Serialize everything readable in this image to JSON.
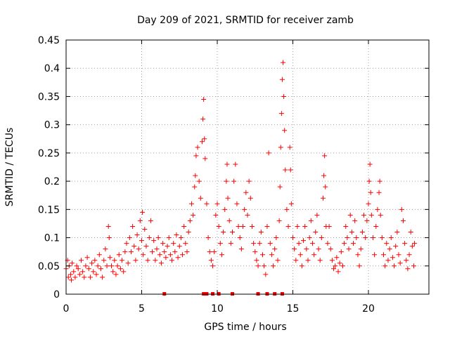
{
  "chart_data": {
    "type": "scatter",
    "title": "Day 209 of 2021, SRMTID for receiver zamb",
    "xlabel": "GPS time / hours",
    "ylabel": "SRMTID / TECUs",
    "xlim": [
      0,
      24
    ],
    "ylim": [
      0,
      0.45
    ],
    "xticks": [
      0,
      5,
      10,
      15,
      20
    ],
    "yticks": [
      0,
      0.05,
      0.1,
      0.15,
      0.2,
      0.25,
      0.3,
      0.35,
      0.4,
      0.45
    ],
    "xtick_labels": [
      "0",
      "5",
      "10",
      "15",
      "20"
    ],
    "ytick_labels": [
      "0",
      "0.05",
      "0.1",
      "0.15",
      "0.2",
      "0.25",
      "0.3",
      "0.35",
      "0.4",
      "0.45"
    ],
    "grid": true,
    "series_color": "#ff0000",
    "marker": "+",
    "series": [
      {
        "name": "SRMTID",
        "points": [
          [
            0.0,
            0.045
          ],
          [
            0.1,
            0.06
          ],
          [
            0.15,
            0.03
          ],
          [
            0.2,
            0.05
          ],
          [
            0.3,
            0.035
          ],
          [
            0.35,
            0.025
          ],
          [
            0.4,
            0.055
          ],
          [
            0.5,
            0.04
          ],
          [
            0.6,
            0.03
          ],
          [
            0.7,
            0.05
          ],
          [
            0.8,
            0.045
          ],
          [
            0.9,
            0.035
          ],
          [
            1.0,
            0.06
          ],
          [
            1.1,
            0.04
          ],
          [
            1.2,
            0.03
          ],
          [
            1.3,
            0.05
          ],
          [
            1.4,
            0.065
          ],
          [
            1.5,
            0.045
          ],
          [
            1.6,
            0.03
          ],
          [
            1.7,
            0.055
          ],
          [
            1.8,
            0.04
          ],
          [
            1.9,
            0.06
          ],
          [
            2.0,
            0.035
          ],
          [
            2.1,
            0.05
          ],
          [
            2.2,
            0.07
          ],
          [
            2.3,
            0.045
          ],
          [
            2.4,
            0.03
          ],
          [
            2.5,
            0.06
          ],
          [
            2.6,
            0.08
          ],
          [
            2.7,
            0.05
          ],
          [
            2.8,
            0.12
          ],
          [
            2.85,
            0.1
          ],
          [
            2.9,
            0.065
          ],
          [
            3.0,
            0.05
          ],
          [
            3.1,
            0.04
          ],
          [
            3.2,
            0.06
          ],
          [
            3.3,
            0.035
          ],
          [
            3.4,
            0.05
          ],
          [
            3.5,
            0.07
          ],
          [
            3.6,
            0.045
          ],
          [
            3.7,
            0.06
          ],
          [
            3.8,
            0.04
          ],
          [
            3.9,
            0.075
          ],
          [
            4.0,
            0.09
          ],
          [
            4.1,
            0.055
          ],
          [
            4.2,
            0.1
          ],
          [
            4.3,
            0.075
          ],
          [
            4.4,
            0.12
          ],
          [
            4.5,
            0.085
          ],
          [
            4.6,
            0.06
          ],
          [
            4.7,
            0.105
          ],
          [
            4.8,
            0.08
          ],
          [
            4.9,
            0.13
          ],
          [
            5.0,
            0.095
          ],
          [
            5.05,
            0.145
          ],
          [
            5.1,
            0.07
          ],
          [
            5.2,
            0.115
          ],
          [
            5.3,
            0.085
          ],
          [
            5.4,
            0.06
          ],
          [
            5.5,
            0.1
          ],
          [
            5.6,
            0.13
          ],
          [
            5.7,
            0.075
          ],
          [
            5.8,
            0.095
          ],
          [
            5.9,
            0.06
          ],
          [
            6.0,
            0.08
          ],
          [
            6.1,
            0.1
          ],
          [
            6.2,
            0.07
          ],
          [
            6.3,
            0.055
          ],
          [
            6.4,
            0.09
          ],
          [
            6.5,
            0.075
          ],
          [
            6.6,
            0.065
          ],
          [
            6.7,
            0.085
          ],
          [
            6.8,
            0.1
          ],
          [
            6.9,
            0.07
          ],
          [
            7.0,
            0.06
          ],
          [
            7.1,
            0.09
          ],
          [
            7.2,
            0.075
          ],
          [
            7.3,
            0.105
          ],
          [
            7.4,
            0.065
          ],
          [
            7.5,
            0.085
          ],
          [
            7.6,
            0.1
          ],
          [
            7.7,
            0.07
          ],
          [
            7.8,
            0.12
          ],
          [
            7.9,
            0.09
          ],
          [
            8.0,
            0.075
          ],
          [
            8.1,
            0.11
          ],
          [
            8.2,
            0.13
          ],
          [
            8.3,
            0.16
          ],
          [
            8.4,
            0.14
          ],
          [
            8.5,
            0.19
          ],
          [
            8.55,
            0.21
          ],
          [
            8.6,
            0.245
          ],
          [
            8.7,
            0.26
          ],
          [
            8.8,
            0.2
          ],
          [
            8.9,
            0.17
          ],
          [
            9.0,
            0.27
          ],
          [
            9.05,
            0.31
          ],
          [
            9.1,
            0.345
          ],
          [
            9.15,
            0.275
          ],
          [
            9.2,
            0.24
          ],
          [
            9.3,
            0.16
          ],
          [
            9.4,
            0.1
          ],
          [
            9.5,
            0.075
          ],
          [
            9.6,
            0.06
          ],
          [
            9.7,
            0.05
          ],
          [
            9.8,
            0.075
          ],
          [
            9.9,
            0.14
          ],
          [
            10.0,
            0.16
          ],
          [
            10.1,
            0.12
          ],
          [
            10.2,
            0.09
          ],
          [
            10.3,
            0.07
          ],
          [
            10.4,
            0.11
          ],
          [
            10.5,
            0.15
          ],
          [
            10.6,
            0.2
          ],
          [
            10.65,
            0.23
          ],
          [
            10.7,
            0.17
          ],
          [
            10.8,
            0.13
          ],
          [
            10.9,
            0.09
          ],
          [
            11.0,
            0.11
          ],
          [
            11.1,
            0.2
          ],
          [
            11.2,
            0.23
          ],
          [
            11.3,
            0.16
          ],
          [
            11.4,
            0.12
          ],
          [
            11.5,
            0.1
          ],
          [
            11.6,
            0.08
          ],
          [
            11.7,
            0.12
          ],
          [
            11.8,
            0.15
          ],
          [
            11.9,
            0.18
          ],
          [
            12.0,
            0.14
          ],
          [
            12.1,
            0.2
          ],
          [
            12.2,
            0.17
          ],
          [
            12.3,
            0.12
          ],
          [
            12.4,
            0.09
          ],
          [
            12.5,
            0.075
          ],
          [
            12.6,
            0.06
          ],
          [
            12.7,
            0.05
          ],
          [
            12.8,
            0.09
          ],
          [
            12.9,
            0.11
          ],
          [
            13.0,
            0.07
          ],
          [
            13.1,
            0.05
          ],
          [
            13.2,
            0.035
          ],
          [
            13.3,
            0.12
          ],
          [
            13.4,
            0.25
          ],
          [
            13.5,
            0.09
          ],
          [
            13.6,
            0.07
          ],
          [
            13.7,
            0.05
          ],
          [
            13.8,
            0.08
          ],
          [
            13.9,
            0.1
          ],
          [
            14.0,
            0.06
          ],
          [
            14.1,
            0.13
          ],
          [
            14.15,
            0.19
          ],
          [
            14.2,
            0.26
          ],
          [
            14.25,
            0.32
          ],
          [
            14.3,
            0.38
          ],
          [
            14.35,
            0.41
          ],
          [
            14.4,
            0.35
          ],
          [
            14.45,
            0.29
          ],
          [
            14.5,
            0.22
          ],
          [
            14.6,
            0.15
          ],
          [
            14.7,
            0.12
          ],
          [
            14.8,
            0.26
          ],
          [
            14.85,
            0.22
          ],
          [
            14.9,
            0.16
          ],
          [
            15.0,
            0.1
          ],
          [
            15.1,
            0.08
          ],
          [
            15.2,
            0.06
          ],
          [
            15.3,
            0.12
          ],
          [
            15.4,
            0.09
          ],
          [
            15.5,
            0.07
          ],
          [
            15.6,
            0.05
          ],
          [
            15.7,
            0.095
          ],
          [
            15.8,
            0.12
          ],
          [
            15.9,
            0.08
          ],
          [
            16.0,
            0.06
          ],
          [
            16.1,
            0.1
          ],
          [
            16.2,
            0.13
          ],
          [
            16.3,
            0.09
          ],
          [
            16.4,
            0.07
          ],
          [
            16.5,
            0.11
          ],
          [
            16.6,
            0.14
          ],
          [
            16.7,
            0.08
          ],
          [
            16.8,
            0.06
          ],
          [
            16.9,
            0.1
          ],
          [
            17.0,
            0.17
          ],
          [
            17.05,
            0.21
          ],
          [
            17.1,
            0.245
          ],
          [
            17.15,
            0.19
          ],
          [
            17.2,
            0.12
          ],
          [
            17.3,
            0.09
          ],
          [
            17.4,
            0.12
          ],
          [
            17.5,
            0.08
          ],
          [
            17.6,
            0.06
          ],
          [
            17.7,
            0.045
          ],
          [
            17.8,
            0.05
          ],
          [
            17.9,
            0.065
          ],
          [
            18.0,
            0.04
          ],
          [
            18.1,
            0.055
          ],
          [
            18.2,
            0.075
          ],
          [
            18.3,
            0.05
          ],
          [
            18.4,
            0.09
          ],
          [
            18.5,
            0.12
          ],
          [
            18.6,
            0.1
          ],
          [
            18.7,
            0.08
          ],
          [
            18.8,
            0.14
          ],
          [
            18.9,
            0.11
          ],
          [
            19.0,
            0.09
          ],
          [
            19.1,
            0.13
          ],
          [
            19.2,
            0.1
          ],
          [
            19.3,
            0.07
          ],
          [
            19.4,
            0.05
          ],
          [
            19.5,
            0.08
          ],
          [
            19.6,
            0.11
          ],
          [
            19.7,
            0.14
          ],
          [
            19.8,
            0.1
          ],
          [
            19.9,
            0.13
          ],
          [
            20.0,
            0.16
          ],
          [
            20.05,
            0.2
          ],
          [
            20.1,
            0.23
          ],
          [
            20.15,
            0.18
          ],
          [
            20.2,
            0.14
          ],
          [
            20.3,
            0.1
          ],
          [
            20.4,
            0.07
          ],
          [
            20.5,
            0.12
          ],
          [
            20.6,
            0.15
          ],
          [
            20.7,
            0.18
          ],
          [
            20.75,
            0.2
          ],
          [
            20.8,
            0.14
          ],
          [
            20.9,
            0.1
          ],
          [
            21.0,
            0.07
          ],
          [
            21.1,
            0.05
          ],
          [
            21.2,
            0.09
          ],
          [
            21.3,
            0.06
          ],
          [
            21.4,
            0.08
          ],
          [
            21.5,
            0.1
          ],
          [
            21.6,
            0.065
          ],
          [
            21.7,
            0.05
          ],
          [
            21.8,
            0.085
          ],
          [
            21.9,
            0.11
          ],
          [
            22.0,
            0.07
          ],
          [
            22.1,
            0.055
          ],
          [
            22.2,
            0.15
          ],
          [
            22.3,
            0.13
          ],
          [
            22.4,
            0.09
          ],
          [
            22.5,
            0.06
          ],
          [
            22.6,
            0.045
          ],
          [
            22.7,
            0.07
          ],
          [
            22.8,
            0.11
          ],
          [
            22.9,
            0.085
          ],
          [
            23.0,
            0.05
          ],
          [
            23.05,
            0.09
          ]
        ]
      }
    ],
    "zero_marks_x": [
      6.5,
      9.1,
      9.3,
      9.7,
      10.1,
      11.0,
      12.7,
      13.3,
      13.8,
      14.3
    ]
  }
}
